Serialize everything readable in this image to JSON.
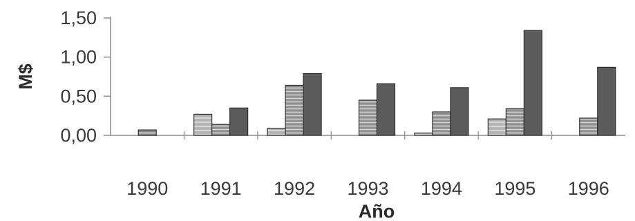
{
  "chart_data": {
    "type": "bar",
    "categories": [
      "1990",
      "1991",
      "1992",
      "1993",
      "1994",
      "1995",
      "1996"
    ],
    "series": [
      {
        "values": [
          0,
          0.27,
          0.09,
          0,
          0.03,
          0.21,
          0
        ],
        "fill": "light-stripe"
      },
      {
        "values": [
          0.07,
          0.14,
          0.64,
          0.45,
          0.3,
          0.34,
          0.22
        ],
        "fill": "striped"
      },
      {
        "values": [
          0,
          0.35,
          0.79,
          0.66,
          0.61,
          1.34,
          0.87
        ],
        "fill": "dark"
      }
    ],
    "xlabel": "Año",
    "ylabel": "M$",
    "ylim": [
      0,
      1.5
    ],
    "yticks": [
      "0,00",
      "0,50",
      "1,00",
      "1,50"
    ],
    "yticks_values": [
      0,
      0.5,
      1.0,
      1.5
    ],
    "grid": false,
    "colors": {
      "light": "#b4b4b4",
      "striped_base": "#8f8f8f",
      "striped_line": "#d2d2d2",
      "dark": "#5c5c5c",
      "outline": "#2e2e2e",
      "axis": "#8a8a8a"
    }
  }
}
